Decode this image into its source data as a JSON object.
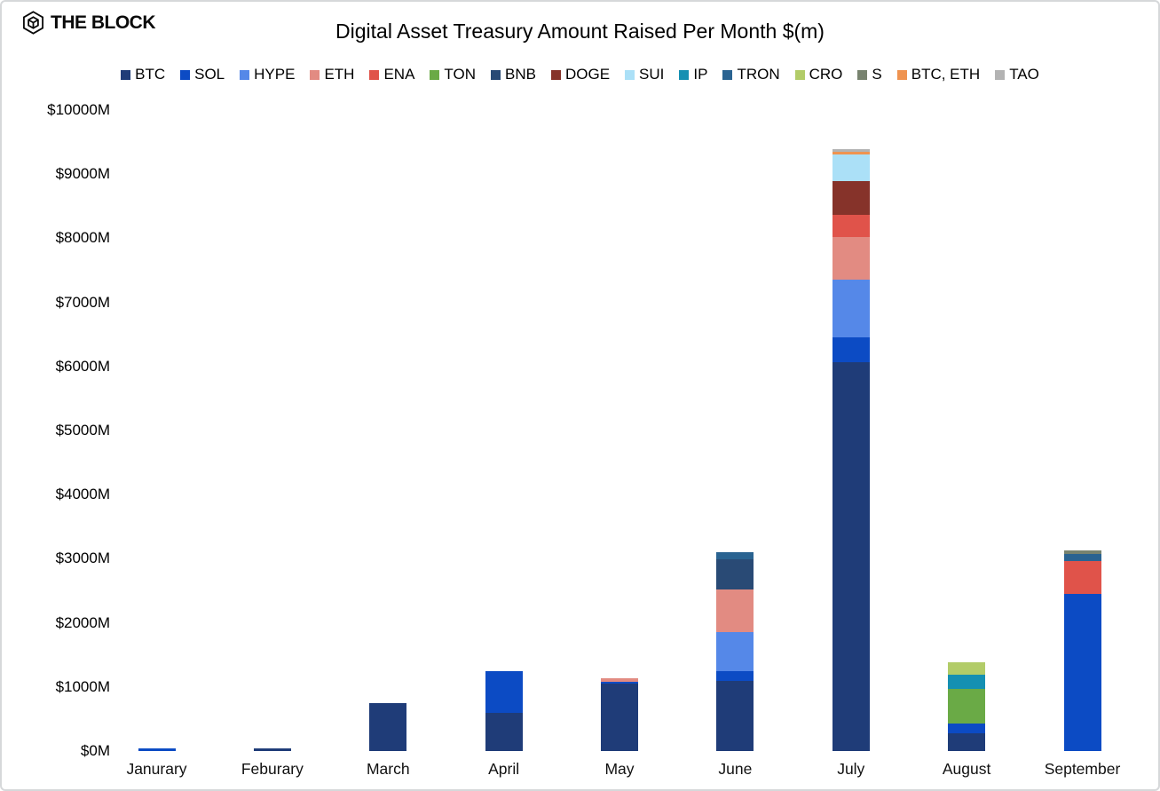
{
  "brand": {
    "logo_text": "THE BLOCK"
  },
  "title": "Digital Asset Treasury Amount Raised Per Month $(m)",
  "chart_data": {
    "type": "bar",
    "stacked": true,
    "title": "Digital Asset Treasury Amount Raised Per Month $(m)",
    "xlabel": "",
    "ylabel": "",
    "ylim": [
      0,
      10000
    ],
    "ytick_step": 1000,
    "ytick_format": "$#M",
    "grid": false,
    "legend_position": "top",
    "categories": [
      "Janurary",
      "Feburary",
      "March",
      "April",
      "May",
      "June",
      "July",
      "August",
      "September"
    ],
    "yticks": [
      {
        "value": 10000,
        "label": "$10000M"
      },
      {
        "value": 9000,
        "label": "$9000M"
      },
      {
        "value": 8000,
        "label": "$8000M"
      },
      {
        "value": 7000,
        "label": "$7000M"
      },
      {
        "value": 6000,
        "label": "$6000M"
      },
      {
        "value": 5000,
        "label": "$5000M"
      },
      {
        "value": 4000,
        "label": "$4000M"
      },
      {
        "value": 3000,
        "label": "$3000M"
      },
      {
        "value": 2000,
        "label": "$2000M"
      },
      {
        "value": 1000,
        "label": "$1000M"
      },
      {
        "value": 0,
        "label": "$0M"
      }
    ],
    "series": [
      {
        "name": "BTC",
        "color": "#1f3c78",
        "values": [
          0,
          40,
          750,
          590,
          1050,
          1090,
          6060,
          275,
          0
        ]
      },
      {
        "name": "SOL",
        "color": "#0c4bc4",
        "values": [
          35,
          0,
          0,
          650,
          25,
          150,
          390,
          150,
          2450
        ]
      },
      {
        "name": "HYPE",
        "color": "#5588e8",
        "values": [
          0,
          0,
          0,
          0,
          0,
          610,
          900,
          0,
          0
        ]
      },
      {
        "name": "ETH",
        "color": "#e28b82",
        "values": [
          0,
          0,
          0,
          0,
          65,
          670,
          670,
          0,
          0
        ]
      },
      {
        "name": "ENA",
        "color": "#e0534a",
        "values": [
          0,
          0,
          0,
          0,
          0,
          0,
          345,
          0,
          520
        ]
      },
      {
        "name": "TON",
        "color": "#6aaa46",
        "values": [
          0,
          0,
          0,
          0,
          0,
          0,
          0,
          540,
          0
        ]
      },
      {
        "name": "BNB",
        "color": "#294a75",
        "values": [
          0,
          0,
          0,
          0,
          0,
          465,
          0,
          0,
          0
        ]
      },
      {
        "name": "DOGE",
        "color": "#86332a",
        "values": [
          0,
          0,
          0,
          0,
          0,
          0,
          530,
          0,
          0
        ]
      },
      {
        "name": "SUI",
        "color": "#abe0f7",
        "values": [
          0,
          0,
          0,
          0,
          0,
          0,
          415,
          0,
          0
        ]
      },
      {
        "name": "IP",
        "color": "#1590b2",
        "values": [
          0,
          0,
          0,
          0,
          0,
          0,
          0,
          230,
          0
        ]
      },
      {
        "name": "TRON",
        "color": "#2a6391",
        "values": [
          0,
          0,
          0,
          0,
          0,
          115,
          0,
          0,
          105
        ]
      },
      {
        "name": "CRO",
        "color": "#b2cc68",
        "values": [
          0,
          0,
          0,
          0,
          0,
          0,
          0,
          195,
          0
        ]
      },
      {
        "name": "S",
        "color": "#78836f",
        "values": [
          0,
          0,
          0,
          0,
          0,
          0,
          0,
          0,
          60
        ]
      },
      {
        "name": "BTC, ETH",
        "color": "#ef9350",
        "values": [
          0,
          0,
          0,
          0,
          0,
          0,
          45,
          0,
          0
        ]
      },
      {
        "name": "TAO",
        "color": "#b3b3b3",
        "values": [
          0,
          0,
          0,
          0,
          0,
          0,
          35,
          0,
          0
        ]
      }
    ],
    "monthly_totals": [
      35,
      40,
      750,
      1240,
      1140,
      3100,
      9390,
      1390,
      3135
    ]
  }
}
